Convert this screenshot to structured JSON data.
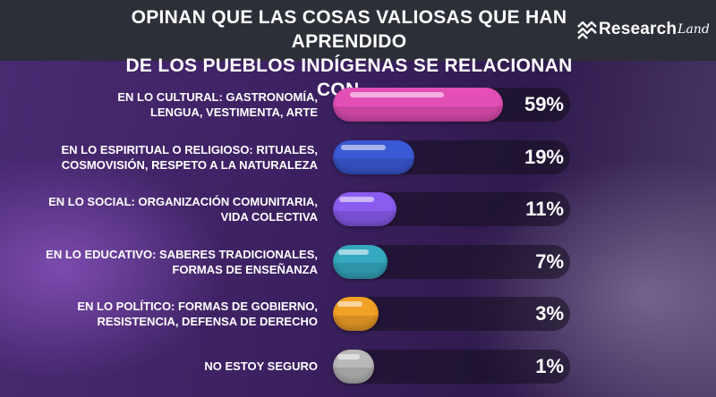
{
  "header": {
    "title_line1": "OPINAN QUE LAS COSAS VALIOSAS QUE HAN APRENDIDO",
    "title_line2": "DE LOS PUEBLOS INDÍGENAS SE RELACIONAN CON ...",
    "logo_word": "Research",
    "logo_script": "Land"
  },
  "colors": {
    "header_bg": "#2d2f38",
    "bar_colors": [
      "#e44fb6",
      "#3a5ad6",
      "#8b5cf0",
      "#35a9bf",
      "#f2a127",
      "#b9b9b9"
    ]
  },
  "chart_data": {
    "type": "bar",
    "orientation": "horizontal",
    "title": "OPINAN QUE LAS COSAS VALIOSAS QUE HAN APRENDIDO DE LOS PUEBLOS INDÍGENAS SE RELACIONAN CON ...",
    "categories": [
      [
        "EN LO CULTURAL: GASTRONOMÍA,",
        "LENGUA, VESTIMENTA, ARTE"
      ],
      [
        "EN LO ESPIRITUAL O RELIGIOSO: RITUALES,",
        "COSMOVISIÓN, RESPETO A LA NATURALEZA"
      ],
      [
        "EN LO SOCIAL: ORGANIZACIÓN COMUNITARIA,",
        "VIDA COLECTIVA"
      ],
      [
        "EN LO EDUCATIVO: SABERES TRADICIONALES,",
        "FORMAS DE ENSEÑANZA"
      ],
      [
        "EN LO POLÍTICO: FORMAS DE GOBIERNO,",
        "RESISTENCIA, DEFENSA DE DERECHO"
      ],
      [
        "NO ESTOY SEGURO"
      ]
    ],
    "values": [
      59,
      19,
      11,
      7,
      3,
      1
    ],
    "value_labels": [
      "59%",
      "19%",
      "11%",
      "7%",
      "3%",
      "1%"
    ],
    "xlim": [
      0,
      100
    ],
    "unit": "%"
  }
}
